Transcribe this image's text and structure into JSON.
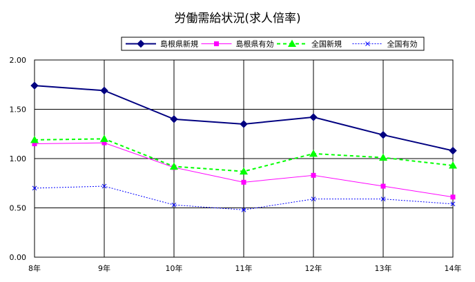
{
  "chart_data": {
    "type": "line",
    "title": "労働需給状況(求人倍率)",
    "xlabel": "",
    "ylabel": "",
    "categories": [
      "8年",
      "9年",
      "10年",
      "11年",
      "12年",
      "13年",
      "14年"
    ],
    "ylim": [
      0,
      2
    ],
    "yticks": [
      "0.00",
      "0.50",
      "1.00",
      "1.50",
      "2.00"
    ],
    "grid": true,
    "legend_position": "top",
    "series": [
      {
        "name": "島根県新規",
        "values": [
          1.74,
          1.69,
          1.4,
          1.35,
          1.42,
          1.24,
          1.08
        ],
        "color": "#000080",
        "marker": "diamond",
        "dash": "solid"
      },
      {
        "name": "島根県有効",
        "values": [
          1.15,
          1.16,
          0.91,
          0.76,
          0.83,
          0.72,
          0.61
        ],
        "color": "#ff00ff",
        "marker": "square",
        "dash": "solid"
      },
      {
        "name": "全国新規",
        "values": [
          1.19,
          1.2,
          0.92,
          0.87,
          1.05,
          1.01,
          0.93
        ],
        "color": "#00ff00",
        "marker": "triangle",
        "dash": "dashed"
      },
      {
        "name": "全国有効",
        "values": [
          0.7,
          0.72,
          0.53,
          0.48,
          0.59,
          0.59,
          0.54
        ],
        "color": "#0000ff",
        "marker": "x",
        "dash": "dotted"
      }
    ]
  }
}
